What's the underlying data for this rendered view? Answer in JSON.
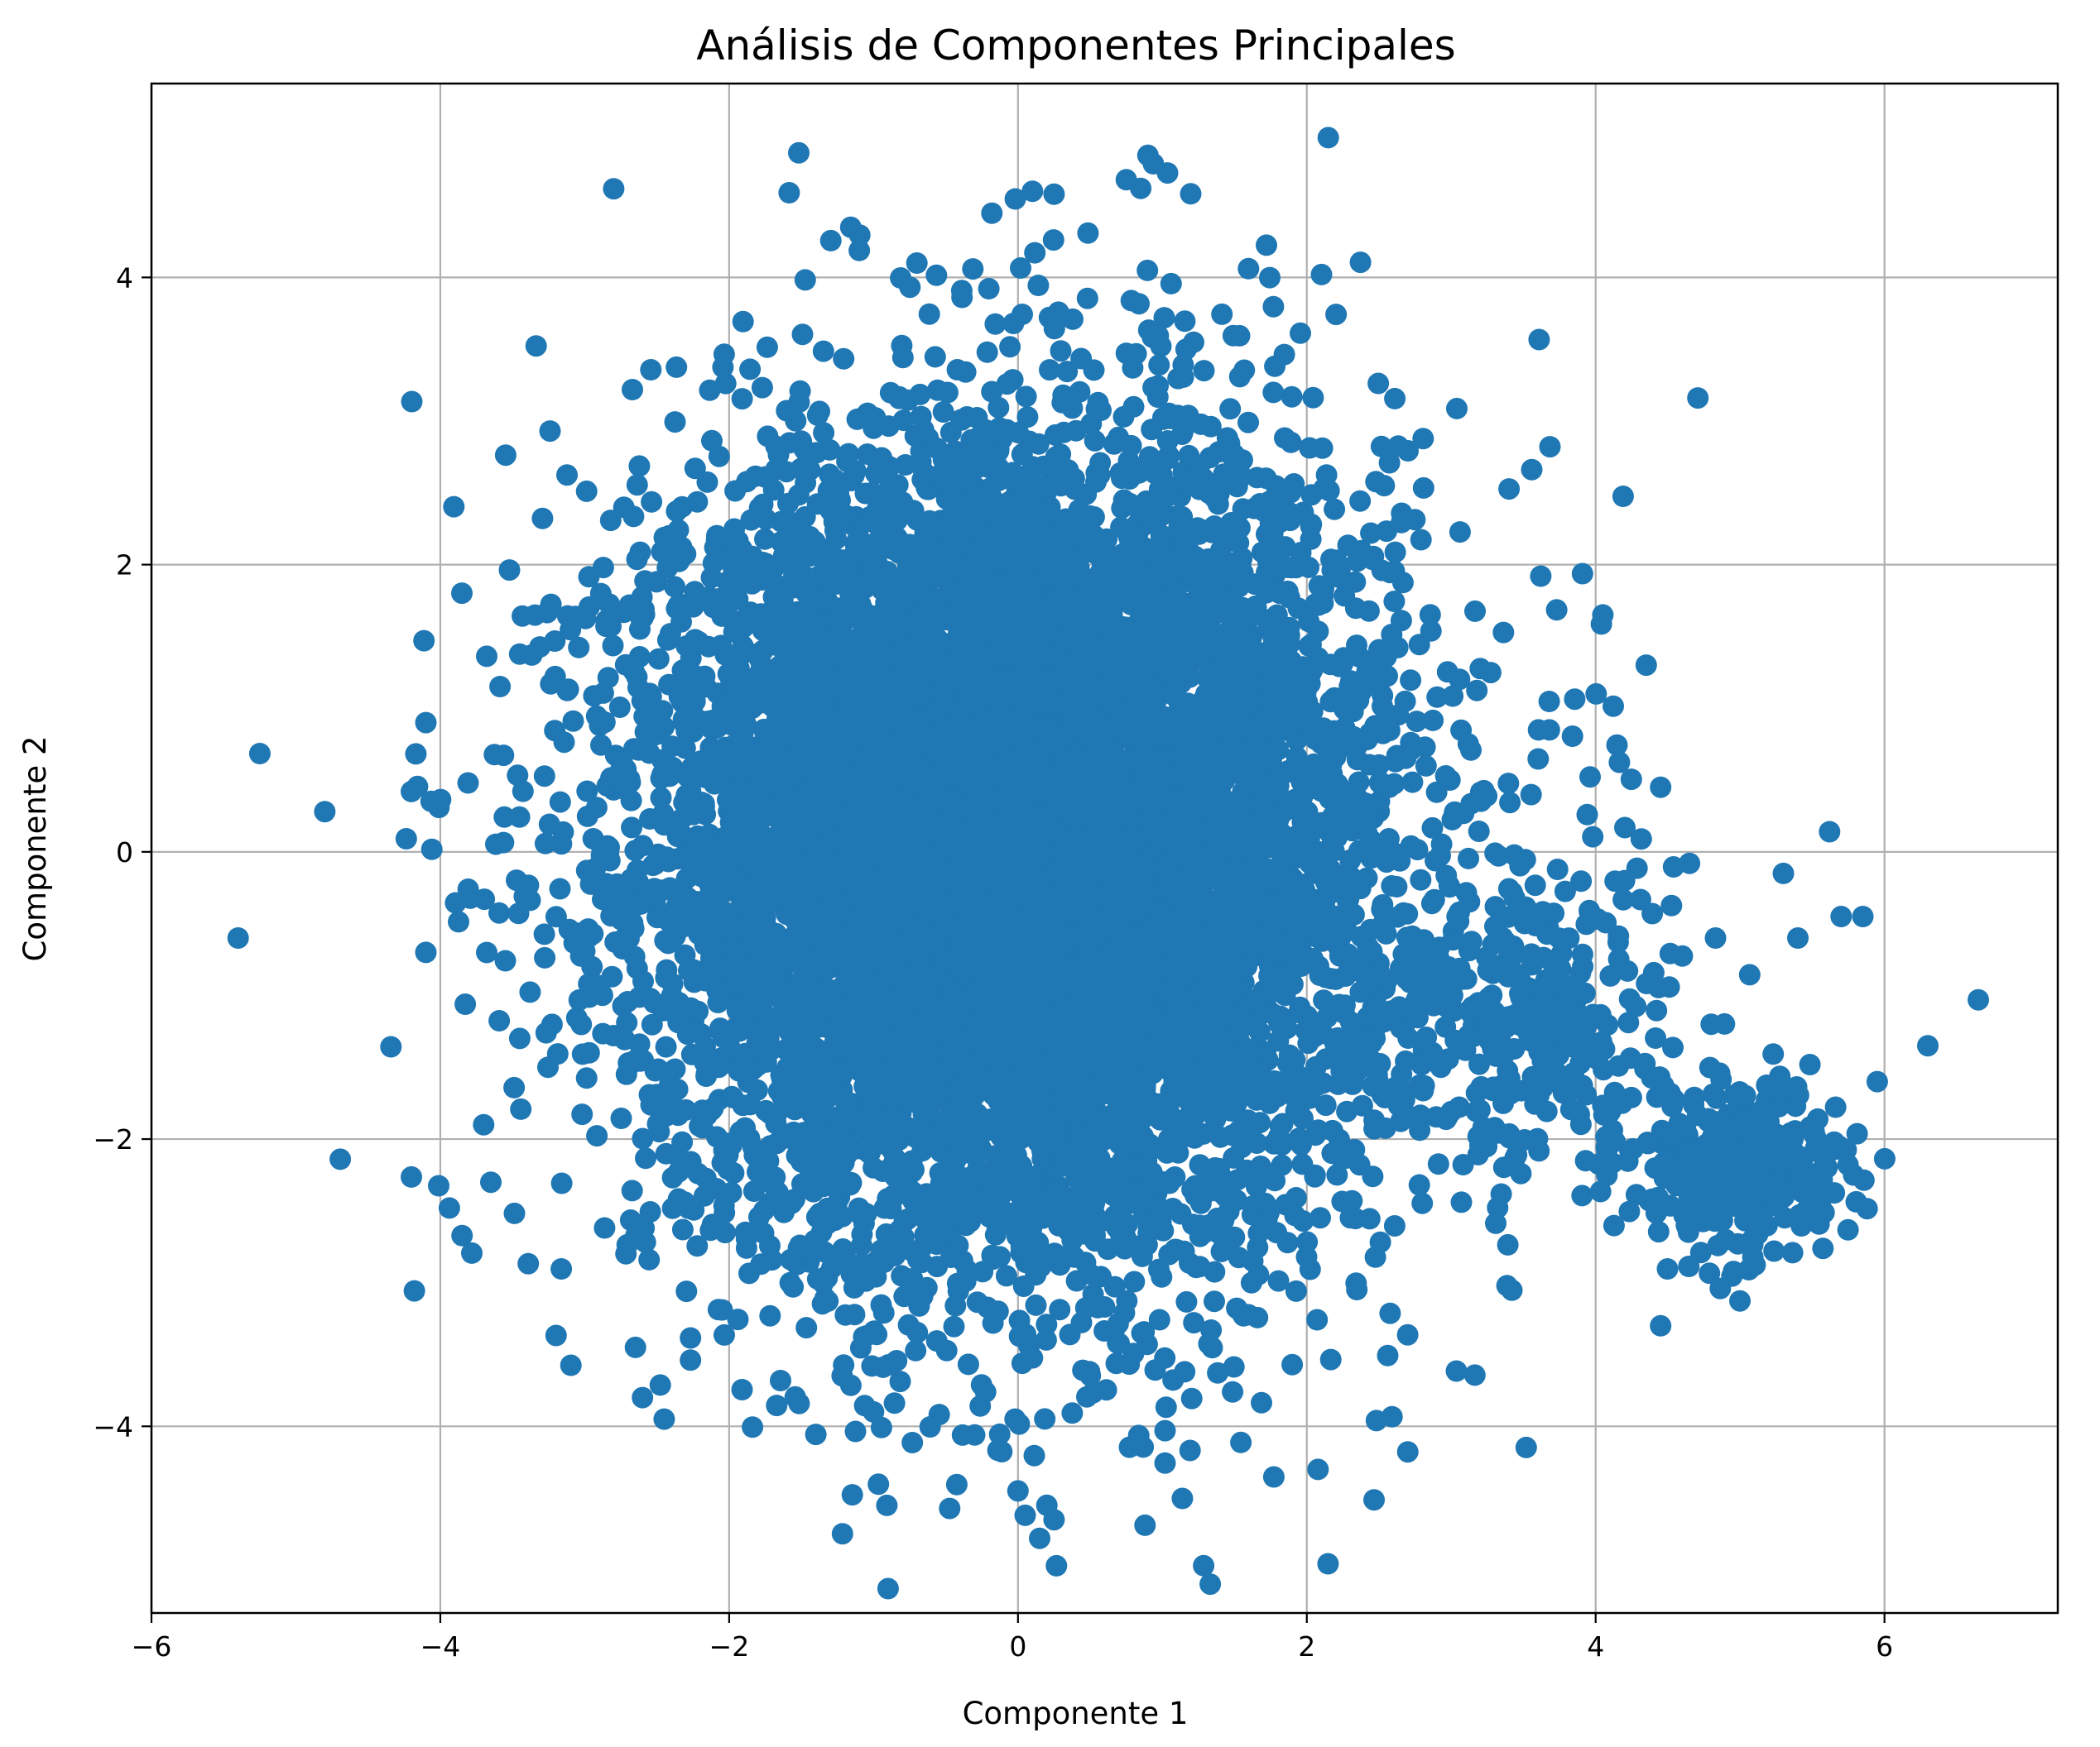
{
  "chart_data": {
    "type": "scatter",
    "title": "Análisis de Componentes Principales",
    "xlabel": "Componente 1",
    "ylabel": "Componente 2",
    "xlim": [
      -6,
      7.2
    ],
    "ylim": [
      -5.3,
      5.35
    ],
    "xticks": [
      -6,
      -4,
      -2,
      0,
      2,
      4,
      6
    ],
    "yticks": [
      -4,
      -2,
      0,
      2,
      4
    ],
    "xtick_labels": [
      "−6",
      "−4",
      "−2",
      "0",
      "2",
      "4",
      "6"
    ],
    "ytick_labels": [
      "−4",
      "−2",
      "0",
      "2",
      "4"
    ],
    "grid": true,
    "marker_color": "#1f77b4",
    "series": [
      {
        "clusters": [
          {
            "center": [
              0.0,
              0.0
            ],
            "spread": [
              1.3,
              1.45
            ],
            "count": 9000
          },
          {
            "center": [
              5.0,
              -2.2
            ],
            "spread": [
              0.35,
              0.3
            ],
            "count": 350
          },
          {
            "center": [
              3.6,
              -1.2
            ],
            "spread": [
              0.5,
              0.5
            ],
            "count": 300
          }
        ],
        "outliers": [
          [
            -5.4,
            -0.6
          ],
          [
            -4.8,
            0.28
          ],
          [
            -4.2,
            0.42
          ],
          [
            -4.1,
            0.9
          ],
          [
            -4.1,
            -0.7
          ],
          [
            -3.7,
            -1.9
          ],
          [
            -3.65,
            -2.3
          ],
          [
            -2.45,
            -3.95
          ],
          [
            -2.6,
            -3.8
          ],
          [
            0.9,
            4.85
          ],
          [
            0.1,
            4.6
          ],
          [
            0.25,
            4.58
          ],
          [
            0.75,
            4.68
          ],
          [
            0.85,
            4.62
          ],
          [
            -0.7,
            4.1
          ],
          [
            0.0,
            -4.45
          ],
          [
            0.05,
            -4.62
          ],
          [
            0.25,
            -4.65
          ],
          [
            0.15,
            -4.78
          ],
          [
            0.2,
            -4.55
          ],
          [
            -0.02,
            -3.95
          ],
          [
            -1.0,
            -3.9
          ],
          [
            4.45,
            -3.3
          ],
          [
            6.65,
            -1.03
          ],
          [
            6.3,
            -1.35
          ],
          [
            5.95,
            -1.6
          ],
          [
            5.85,
            -0.45
          ],
          [
            5.7,
            -0.45
          ],
          [
            5.62,
            0.14
          ],
          [
            5.3,
            -0.15
          ],
          [
            5.4,
            -0.6
          ],
          [
            4.83,
            -0.6
          ],
          [
            4.65,
            -0.08
          ],
          [
            4.45,
            0.45
          ],
          [
            4.2,
            -0.2
          ],
          [
            4.35,
            1.3
          ],
          [
            4.05,
            1.65
          ],
          [
            3.62,
            1.92
          ],
          [
            4.8,
            -1.2
          ],
          [
            4.9,
            -2.7
          ]
        ]
      }
    ]
  }
}
